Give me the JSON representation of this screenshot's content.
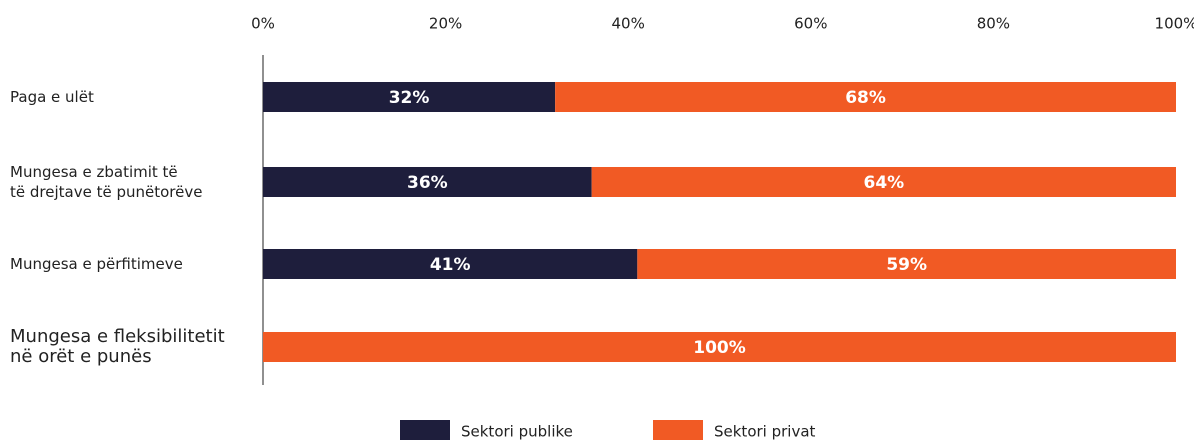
{
  "chart_data": {
    "type": "stacked-bar-horizontal",
    "categories": [
      "Paga e ulët",
      "Mungesa e zbatimit të\ntë drejtave të punëtorëve",
      "Mungesa e përfitimeve",
      "Mungesa e fleksibilitetit\nnë orët e punës"
    ],
    "series": [
      {
        "name": "Sektori publike",
        "color": "#1e1e3c",
        "values": [
          32,
          36,
          41,
          0
        ],
        "value_labels": [
          "32%",
          "36%",
          "41%",
          null
        ]
      },
      {
        "name": "Sektori privat",
        "color": "#f15a24",
        "values": [
          68,
          64,
          59,
          100
        ],
        "value_labels": [
          "68%",
          "64%",
          "59%",
          "100%"
        ]
      }
    ],
    "xlim": [
      0,
      100
    ],
    "xticks": [
      {
        "value": 0,
        "label": "0%"
      },
      {
        "value": 20,
        "label": "20%"
      },
      {
        "value": 40,
        "label": "40%"
      },
      {
        "value": 60,
        "label": "60%"
      },
      {
        "value": 80,
        "label": "80%"
      },
      {
        "value": 100,
        "label": "100%"
      }
    ],
    "legend": "bottom"
  }
}
